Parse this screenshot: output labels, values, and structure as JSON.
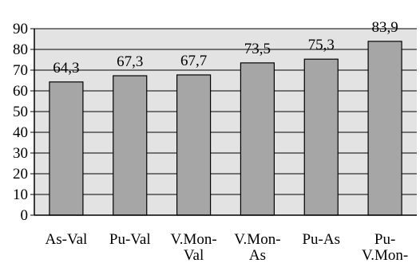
{
  "chart_data": {
    "type": "bar",
    "categories": [
      [
        "As-Val"
      ],
      [
        "Pu-Val"
      ],
      [
        "V.Mon-",
        "Val"
      ],
      [
        "V.Mon-",
        "As"
      ],
      [
        "Pu-As"
      ],
      [
        "Pu-",
        "V.Mon-"
      ]
    ],
    "values": [
      64.3,
      67.3,
      67.7,
      73.5,
      75.3,
      83.9
    ],
    "value_labels": [
      "64,3",
      "67,3",
      "67,7",
      "73,5",
      "75,3",
      "83,9"
    ],
    "yticks": [
      "0",
      "10",
      "20",
      "30",
      "40",
      "50",
      "60",
      "70",
      "80",
      "90"
    ],
    "ylim": [
      0,
      90
    ],
    "grid": true,
    "title": "",
    "xlabel": "",
    "ylabel": "",
    "colors": {
      "bar_fill": "#a6a6a6",
      "bar_stroke": "#000000",
      "plot_background": "#e3e3e3",
      "grid": "#000000"
    }
  }
}
